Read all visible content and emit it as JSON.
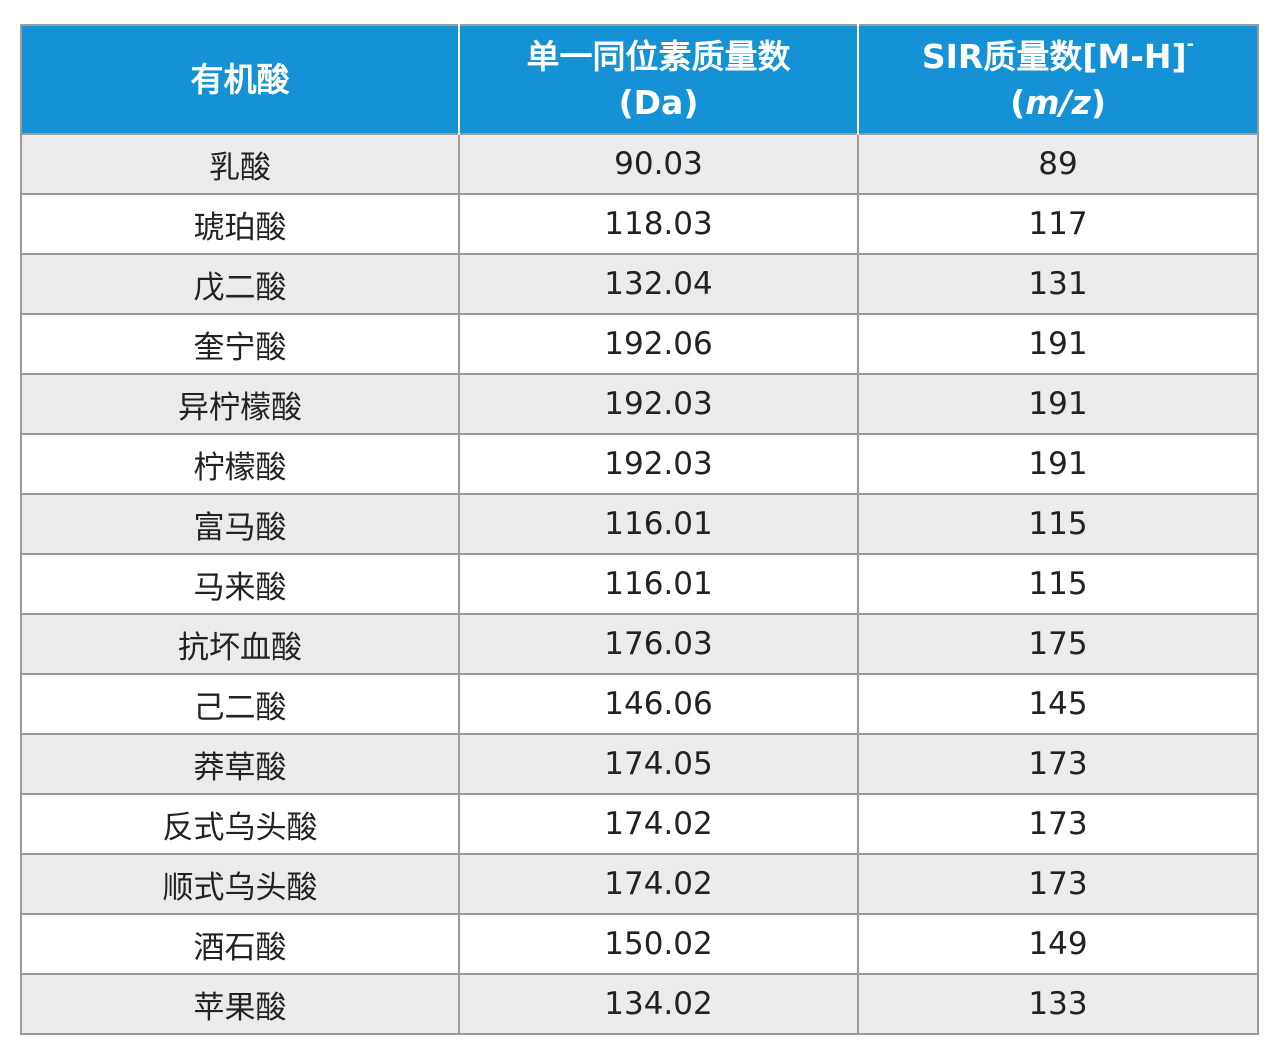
{
  "table": {
    "headers": {
      "col1": "有机酸",
      "col2_line1": "单一同位素质量数",
      "col2_line2": "(Da)",
      "col3_line1_main": "SIR质量数[M-H]",
      "col3_line1_sup": "-",
      "col3_line2_open": "(",
      "col3_line2_italic": "m/z",
      "col3_line2_close": ")"
    },
    "rows": [
      {
        "acid": "乳酸",
        "mass": "90.03",
        "sir": "89"
      },
      {
        "acid": "琥珀酸",
        "mass": "118.03",
        "sir": "117"
      },
      {
        "acid": "戊二酸",
        "mass": "132.04",
        "sir": "131"
      },
      {
        "acid": "奎宁酸",
        "mass": "192.06",
        "sir": "191"
      },
      {
        "acid": "异柠檬酸",
        "mass": "192.03",
        "sir": "191"
      },
      {
        "acid": "柠檬酸",
        "mass": "192.03",
        "sir": "191"
      },
      {
        "acid": "富马酸",
        "mass": "116.01",
        "sir": "115"
      },
      {
        "acid": "马来酸",
        "mass": "116.01",
        "sir": "115"
      },
      {
        "acid": "抗坏血酸",
        "mass": "176.03",
        "sir": "175"
      },
      {
        "acid": "己二酸",
        "mass": "146.06",
        "sir": "145"
      },
      {
        "acid": "莽草酸",
        "mass": "174.05",
        "sir": "173"
      },
      {
        "acid": "反式乌头酸",
        "mass": "174.02",
        "sir": "173"
      },
      {
        "acid": "顺式乌头酸",
        "mass": "174.02",
        "sir": "173"
      },
      {
        "acid": "酒石酸",
        "mass": "150.02",
        "sir": "149"
      },
      {
        "acid": "苹果酸",
        "mass": "134.02",
        "sir": "133"
      }
    ]
  },
  "colors": {
    "header_bg": "#1592d5",
    "header_text": "#ffffff",
    "row_odd_bg": "#ebebeb",
    "row_even_bg": "#ffffff",
    "border": "#9b9b9b"
  }
}
